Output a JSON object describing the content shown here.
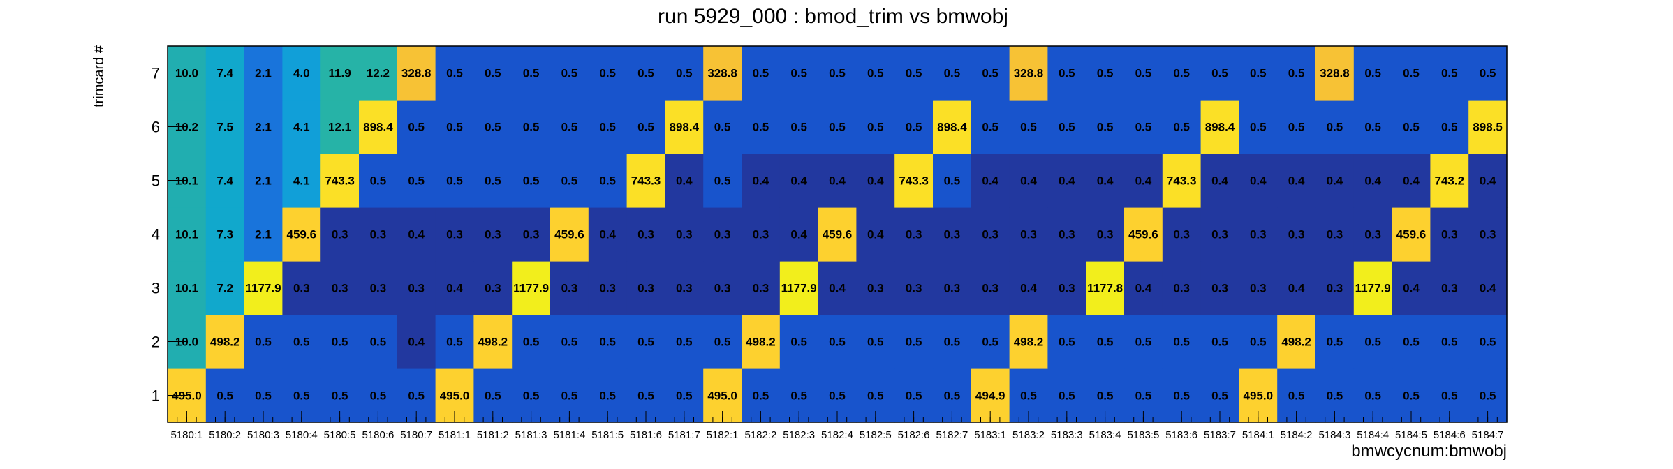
{
  "chart_data": {
    "type": "heatmap",
    "title": "run 5929_000 : bmod_trim vs bmwobj",
    "xlabel": "bmwcycnum:bmwobj",
    "ylabel": "trimcard #",
    "x": [
      "5180:1",
      "5180:2",
      "5180:3",
      "5180:4",
      "5180:5",
      "5180:6",
      "5180:7",
      "5181:1",
      "5181:2",
      "5181:3",
      "5181:4",
      "5181:5",
      "5181:6",
      "5181:7",
      "5182:1",
      "5182:2",
      "5182:3",
      "5182:4",
      "5182:5",
      "5182:6",
      "5182:7",
      "5183:1",
      "5183:2",
      "5183:3",
      "5183:4",
      "5183:5",
      "5183:6",
      "5183:7",
      "5184:1",
      "5184:2",
      "5184:3",
      "5184:4",
      "5184:5",
      "5184:6",
      "5184:7"
    ],
    "y": [
      "1",
      "2",
      "3",
      "4",
      "5",
      "6",
      "7"
    ],
    "values": [
      [
        "495.0",
        "0.5",
        "0.5",
        "0.5",
        "0.5",
        "0.5",
        "0.5",
        "495.0",
        "0.5",
        "0.5",
        "0.5",
        "0.5",
        "0.5",
        "0.5",
        "495.0",
        "0.5",
        "0.5",
        "0.5",
        "0.5",
        "0.5",
        "0.5",
        "494.9",
        "0.5",
        "0.5",
        "0.5",
        "0.5",
        "0.5",
        "0.5",
        "495.0",
        "0.5",
        "0.5",
        "0.5",
        "0.5",
        "0.5",
        "0.5"
      ],
      [
        "10.0",
        "498.2",
        "0.5",
        "0.5",
        "0.5",
        "0.5",
        "0.4",
        "0.5",
        "498.2",
        "0.5",
        "0.5",
        "0.5",
        "0.5",
        "0.5",
        "0.5",
        "498.2",
        "0.5",
        "0.5",
        "0.5",
        "0.5",
        "0.5",
        "0.5",
        "498.2",
        "0.5",
        "0.5",
        "0.5",
        "0.5",
        "0.5",
        "0.5",
        "498.2",
        "0.5",
        "0.5",
        "0.5",
        "0.5",
        "0.5"
      ],
      [
        "10.1",
        "7.2",
        "1177.9",
        "0.3",
        "0.3",
        "0.3",
        "0.3",
        "0.4",
        "0.3",
        "1177.9",
        "0.3",
        "0.3",
        "0.3",
        "0.3",
        "0.3",
        "0.3",
        "1177.9",
        "0.4",
        "0.3",
        "0.3",
        "0.3",
        "0.3",
        "0.4",
        "0.3",
        "1177.8",
        "0.4",
        "0.3",
        "0.3",
        "0.3",
        "0.4",
        "0.3",
        "1177.9",
        "0.4",
        "0.3",
        "0.4"
      ],
      [
        "10.1",
        "7.3",
        "2.1",
        "459.6",
        "0.3",
        "0.3",
        "0.4",
        "0.3",
        "0.3",
        "0.3",
        "459.6",
        "0.4",
        "0.3",
        "0.3",
        "0.3",
        "0.3",
        "0.4",
        "459.6",
        "0.4",
        "0.3",
        "0.3",
        "0.3",
        "0.3",
        "0.3",
        "0.3",
        "459.6",
        "0.3",
        "0.3",
        "0.3",
        "0.3",
        "0.3",
        "0.3",
        "459.6",
        "0.3",
        "0.3"
      ],
      [
        "10.1",
        "7.4",
        "2.1",
        "4.1",
        "743.3",
        "0.5",
        "0.5",
        "0.5",
        "0.5",
        "0.5",
        "0.5",
        "0.5",
        "743.3",
        "0.4",
        "0.5",
        "0.4",
        "0.4",
        "0.4",
        "0.4",
        "743.3",
        "0.5",
        "0.4",
        "0.4",
        "0.4",
        "0.4",
        "0.4",
        "743.3",
        "0.4",
        "0.4",
        "0.4",
        "0.4",
        "0.4",
        "0.4",
        "743.2",
        "0.4"
      ],
      [
        "10.2",
        "7.5",
        "2.1",
        "4.1",
        "12.1",
        "898.4",
        "0.5",
        "0.5",
        "0.5",
        "0.5",
        "0.5",
        "0.5",
        "0.5",
        "898.4",
        "0.5",
        "0.5",
        "0.5",
        "0.5",
        "0.5",
        "0.5",
        "898.4",
        "0.5",
        "0.5",
        "0.5",
        "0.5",
        "0.5",
        "0.5",
        "898.4",
        "0.5",
        "0.5",
        "0.5",
        "0.5",
        "0.5",
        "0.5",
        "898.5"
      ],
      [
        "10.0",
        "7.4",
        "2.1",
        "4.0",
        "11.9",
        "12.2",
        "328.8",
        "0.5",
        "0.5",
        "0.5",
        "0.5",
        "0.5",
        "0.5",
        "0.5",
        "328.8",
        "0.5",
        "0.5",
        "0.5",
        "0.5",
        "0.5",
        "0.5",
        "0.5",
        "328.8",
        "0.5",
        "0.5",
        "0.5",
        "0.5",
        "0.5",
        "0.5",
        "0.5",
        "328.8",
        "0.5",
        "0.5",
        "0.5",
        "0.5"
      ]
    ]
  }
}
